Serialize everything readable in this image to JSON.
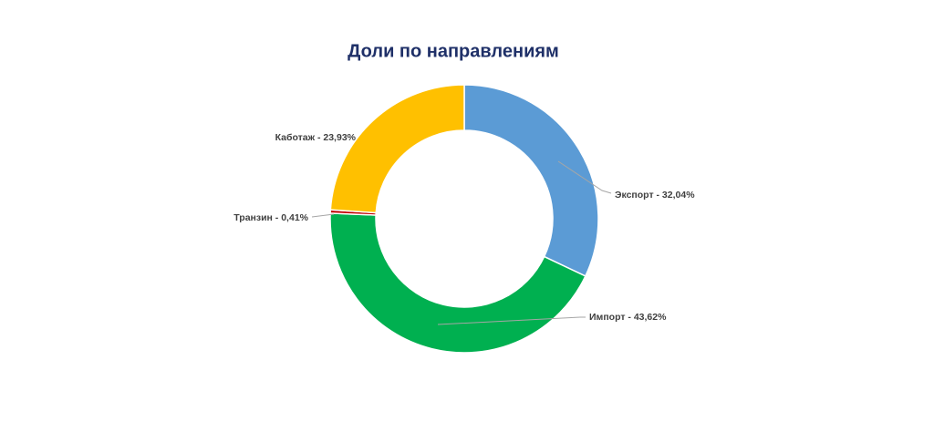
{
  "chart_data": {
    "type": "donut",
    "title": "Доли по направлениям",
    "values": [
      32.04,
      43.62,
      0.41,
      23.93
    ],
    "value_labels": [
      "Экспорт - 32,04%",
      "Импорт - 43,62%",
      "Транзин - 0,41%",
      "Каботаж - 23,93%"
    ],
    "colors": [
      "#5b9bd5",
      "#00b050",
      "#c00000",
      "#ffc000"
    ]
  }
}
